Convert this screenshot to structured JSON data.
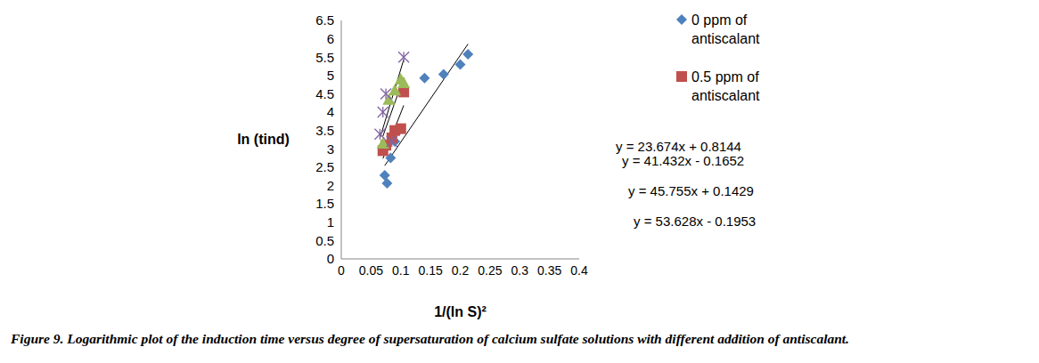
{
  "chart_data": {
    "type": "scatter",
    "caption": "Figure 9. Logarithmic plot of the induction time versus degree of supersaturation of calcium sulfate solutions with different addition of antiscalant.",
    "xlabel": "1/(ln S)²",
    "ylabel": "ln (tind)",
    "xlim": [
      0,
      0.4
    ],
    "xticks": [
      0,
      0.05,
      0.1,
      0.15,
      0.2,
      0.25,
      0.3,
      0.35,
      0.4
    ],
    "ylim": [
      0,
      6.5
    ],
    "yticks": [
      0,
      0.5,
      1,
      1.5,
      2,
      2.5,
      3,
      3.5,
      4,
      4.5,
      5,
      5.5,
      6,
      6.5
    ],
    "grid": false,
    "legend": "upper right",
    "series": [
      {
        "name": "0 ppm of antiscalant",
        "color": "#4f81bd",
        "marker": "diamond",
        "x": [
          0.073,
          0.077,
          0.083,
          0.09,
          0.1,
          0.14,
          0.172,
          0.2,
          0.213
        ],
        "values": [
          2.28,
          2.06,
          2.75,
          3.2,
          3.55,
          4.93,
          5.03,
          5.3,
          5.58
        ],
        "trendline": {
          "slope": 23.674,
          "intercept": 0.8144,
          "label": "y = 23.674x + 0.8144"
        }
      },
      {
        "name": "0.5 ppm of antiscalant",
        "color": "#c0504d",
        "marker": "square",
        "x": [
          0.07,
          0.075,
          0.085,
          0.09,
          0.1,
          0.105
        ],
        "values": [
          2.95,
          3.1,
          3.3,
          3.5,
          3.55,
          4.55
        ],
        "trendline": {
          "slope": 41.432,
          "intercept": -0.1652,
          "label": "y = 41.432x - 0.1652"
        }
      },
      {
        "color": "#9bbb59",
        "marker": "triangle",
        "x": [
          0.07,
          0.08,
          0.09,
          0.1,
          0.105
        ],
        "values": [
          3.15,
          4.35,
          4.6,
          4.9,
          4.8
        ],
        "trendline": {
          "slope": 45.755,
          "intercept": 0.1429,
          "label": "y = 45.755x + 0.1429"
        }
      },
      {
        "color": "#8064a2",
        "marker": "x",
        "x": [
          0.065,
          0.07,
          0.075,
          0.085,
          0.105
        ],
        "values": [
          3.4,
          4.0,
          4.5,
          3.2,
          5.5
        ],
        "trendline": {
          "slope": 53.628,
          "intercept": -0.1953,
          "label": "y = 53.628x - 0.1953"
        }
      }
    ]
  }
}
